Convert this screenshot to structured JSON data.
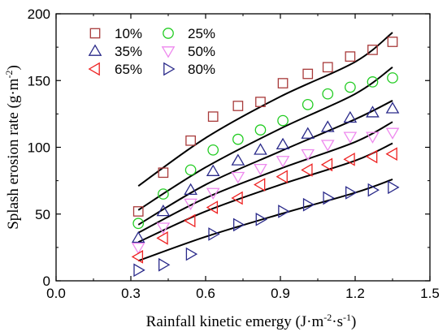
{
  "chart_data": {
    "type": "scatter",
    "title": "",
    "xlabel_parts": [
      {
        "t": "Rainfall kinetic emergy (J·m",
        "sup": false
      },
      {
        "t": "-2",
        "sup": true
      },
      {
        "t": "·s",
        "sup": false
      },
      {
        "t": "-1",
        "sup": true
      },
      {
        "t": ")",
        "sup": false
      }
    ],
    "ylabel_parts": [
      {
        "t": "Splash erosion rate (g·m",
        "sup": false
      },
      {
        "t": "-2",
        "sup": true
      },
      {
        "t": ")",
        "sup": false
      }
    ],
    "xlim": [
      0.0,
      1.5
    ],
    "ylim": [
      0,
      200
    ],
    "xticks": [
      0.0,
      0.3,
      0.6,
      0.9,
      1.2,
      1.5
    ],
    "xtick_labels": [
      "0.0",
      "0.3",
      "0.6",
      "0.9",
      "1.2",
      "1.5"
    ],
    "yticks": [
      0,
      50,
      100,
      150,
      200
    ],
    "ytick_labels": [
      "0",
      "50",
      "100",
      "150",
      "200"
    ],
    "grid": false,
    "legend_position": "top-left",
    "x": [
      0.33,
      0.43,
      0.54,
      0.63,
      0.73,
      0.82,
      0.91,
      1.01,
      1.09,
      1.18,
      1.27,
      1.35
    ],
    "series": [
      {
        "name": "10%",
        "marker": "square",
        "color": "#a83a3a",
        "values": [
          52,
          81,
          105,
          123,
          131,
          134,
          148,
          155,
          160,
          168,
          173,
          179
        ],
        "fit": [
          [
            0.33,
            71
          ],
          [
            0.6,
            107
          ],
          [
            0.9,
            138
          ],
          [
            1.2,
            164
          ],
          [
            1.35,
            186
          ]
        ]
      },
      {
        "name": "25%",
        "marker": "circle",
        "color": "#22cc22",
        "values": [
          43,
          65,
          83,
          98,
          106,
          113,
          120,
          132,
          140,
          145,
          149,
          152
        ],
        "fit": [
          [
            0.33,
            53
          ],
          [
            0.6,
            85
          ],
          [
            0.9,
            114
          ],
          [
            1.2,
            140
          ],
          [
            1.35,
            160
          ]
        ]
      },
      {
        "name": "35%",
        "marker": "triangle-up",
        "color": "#2a2a8a",
        "values": [
          32,
          52,
          68,
          82,
          90,
          98,
          102,
          110,
          115,
          122,
          126,
          129
        ],
        "fit": [
          [
            0.33,
            42
          ],
          [
            0.6,
            72
          ],
          [
            0.9,
            97
          ],
          [
            1.2,
            121
          ],
          [
            1.35,
            135
          ]
        ]
      },
      {
        "name": "50%",
        "marker": "triangle-down",
        "color": "#ee88ee",
        "values": [
          25,
          40,
          58,
          66,
          78,
          84,
          90,
          95,
          102,
          108,
          108,
          111
        ],
        "fit": [
          [
            0.33,
            36
          ],
          [
            0.6,
            62
          ],
          [
            0.9,
            84
          ],
          [
            1.2,
            104
          ],
          [
            1.35,
            119
          ]
        ]
      },
      {
        "name": "65%",
        "marker": "triangle-left",
        "color": "#ee2222",
        "values": [
          18,
          32,
          45,
          55,
          62,
          72,
          78,
          83,
          87,
          91,
          93,
          95
        ],
        "fit": [
          [
            0.33,
            29
          ],
          [
            0.6,
            52
          ],
          [
            0.9,
            72
          ],
          [
            1.2,
            90
          ],
          [
            1.35,
            103
          ]
        ]
      },
      {
        "name": "80%",
        "marker": "triangle-right",
        "color": "#2a2a8a",
        "values": [
          8,
          12,
          20,
          35,
          42,
          46,
          52,
          57,
          62,
          66,
          68,
          70
        ],
        "fit": [
          [
            0.33,
            15
          ],
          [
            0.6,
            33
          ],
          [
            0.9,
            50
          ],
          [
            1.2,
            66
          ],
          [
            1.35,
            76
          ]
        ]
      }
    ]
  }
}
